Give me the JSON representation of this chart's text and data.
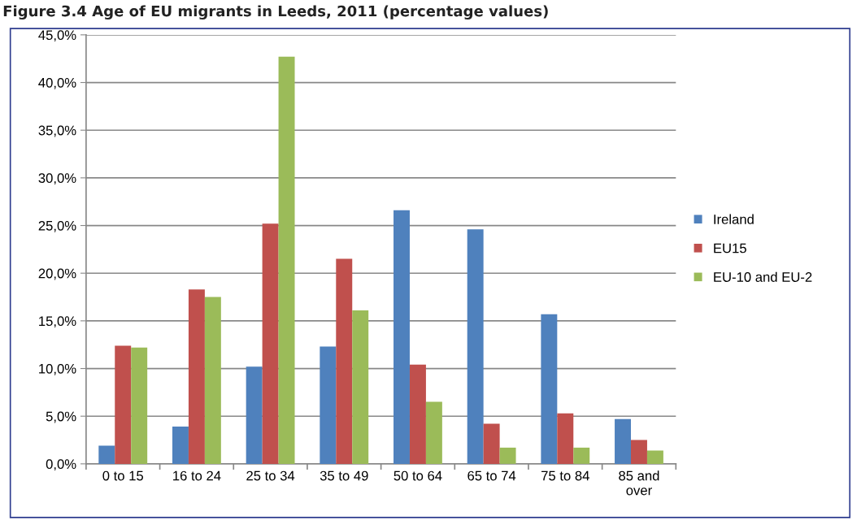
{
  "chart_data": {
    "type": "bar",
    "title": "Figure 3.4 Age of EU migrants in Leeds, 2011 (percentage values)",
    "categories": [
      "0 to 15",
      "16 to 24",
      "25 to 34",
      "35 to 49",
      "50 to 64",
      "65 to 74",
      "75 to 84",
      "85 and\nover"
    ],
    "series": [
      {
        "name": "Ireland",
        "color": "#4f81bd",
        "values": [
          1.9,
          3.9,
          10.2,
          12.3,
          26.6,
          24.6,
          15.7,
          4.7
        ]
      },
      {
        "name": "EU15",
        "color": "#c0504d",
        "values": [
          12.4,
          18.3,
          25.2,
          21.5,
          10.4,
          4.2,
          5.3,
          2.5
        ]
      },
      {
        "name": "EU-10 and EU-2",
        "color": "#9bbb59",
        "values": [
          12.2,
          17.5,
          42.7,
          16.1,
          6.5,
          1.7,
          1.7,
          1.4
        ]
      }
    ],
    "ylim": [
      0,
      45
    ],
    "yticks": [
      {
        "value": 0,
        "label": "0,0%"
      },
      {
        "value": 5,
        "label": "5,0%"
      },
      {
        "value": 10,
        "label": "10,0%"
      },
      {
        "value": 15,
        "label": "15,0%"
      },
      {
        "value": 20,
        "label": "20,0%"
      },
      {
        "value": 25,
        "label": "25,0%"
      },
      {
        "value": 30,
        "label": "30,0%"
      },
      {
        "value": 35,
        "label": "35,0%"
      },
      {
        "value": 40,
        "label": "40,0%"
      },
      {
        "value": 45,
        "label": "45,0%"
      }
    ],
    "grid": "y",
    "legend": "right"
  }
}
